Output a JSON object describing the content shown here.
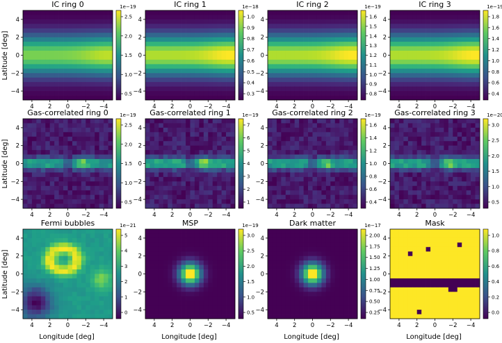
{
  "figure": {
    "xlabel": "Longitude [deg]",
    "ylabel": "Latitude [deg]"
  },
  "chart_data": [
    {
      "type": "heatmap",
      "title": "IC ring 0",
      "kind": "ic",
      "peak": 0.9,
      "cb_ticks": [
        "2.5",
        "2.0",
        "1.5",
        "1.0",
        "0.5"
      ],
      "cb_exp": "1e−19",
      "x_ticks": [
        "4",
        "2",
        "0",
        "−2",
        "−4"
      ],
      "y_ticks": [
        "4",
        "2",
        "0",
        "−2",
        "−4"
      ],
      "xlim": [
        5,
        -5
      ],
      "ylim": [
        -5,
        5
      ]
    },
    {
      "type": "heatmap",
      "title": "IC ring 1",
      "kind": "ic",
      "peak": 1.0,
      "cb_ticks": [
        "1.0",
        "0.9",
        "0.8",
        "0.7",
        "0.6",
        "0.5",
        "0.4",
        "0.3"
      ],
      "cb_exp": "1e−18",
      "x_ticks": [
        "4",
        "2",
        "0",
        "−2",
        "−4"
      ],
      "y_ticks": [
        "4",
        "2",
        "0",
        "−2",
        "−4"
      ],
      "xlim": [
        5,
        -5
      ],
      "ylim": [
        -5,
        5
      ]
    },
    {
      "type": "heatmap",
      "title": "IC ring 2",
      "kind": "ic",
      "peak": 1.0,
      "cb_ticks": [
        "1.6",
        "1.5",
        "1.4",
        "1.3",
        "1.2",
        "1.1",
        "1.0",
        "0.9",
        "0.8"
      ],
      "cb_exp": "1e−19",
      "x_ticks": [
        "4",
        "2",
        "0",
        "−2",
        "−4"
      ],
      "y_ticks": [
        "4",
        "2",
        "0",
        "−2",
        "−4"
      ],
      "xlim": [
        5,
        -5
      ],
      "ylim": [
        -5,
        5
      ]
    },
    {
      "type": "heatmap",
      "title": "IC ring 3",
      "kind": "ic",
      "peak": 1.0,
      "cb_ticks": [
        "1.8",
        "1.6",
        "1.4",
        "1.2",
        "1.0",
        "0.8",
        "0.6",
        "0.4"
      ],
      "cb_exp": "1e−19",
      "x_ticks": [
        "4",
        "2",
        "0",
        "−2",
        "−4"
      ],
      "y_ticks": [
        "4",
        "2",
        "0",
        "−2",
        "−4"
      ],
      "xlim": [
        5,
        -5
      ],
      "ylim": [
        -5,
        5
      ]
    },
    {
      "type": "heatmap",
      "title": "Gas-correlated ring 0",
      "kind": "gas",
      "peak": 0.8,
      "cb_ticks": [
        "2.5",
        "2.0",
        "1.5",
        "1.0",
        "0.5"
      ],
      "cb_exp": "1e−19",
      "x_ticks": [
        "4",
        "2",
        "0",
        "−2",
        "−4"
      ],
      "y_ticks": [
        "4",
        "2",
        "0",
        "−2",
        "−4"
      ],
      "xlim": [
        5,
        -5
      ],
      "ylim": [
        -5,
        5
      ]
    },
    {
      "type": "heatmap",
      "title": "Gas-correlated ring 1",
      "kind": "gas",
      "peak": 0.85,
      "cb_ticks": [
        "7",
        "6",
        "5",
        "4",
        "3",
        "2",
        "1"
      ],
      "cb_exp": "1e−19",
      "x_ticks": [
        "4",
        "2",
        "0",
        "−2",
        "−4"
      ],
      "y_ticks": [
        "4",
        "2",
        "0",
        "−2",
        "−4"
      ],
      "xlim": [
        5,
        -5
      ],
      "ylim": [
        -5,
        5
      ]
    },
    {
      "type": "heatmap",
      "title": "Gas-correlated ring 2",
      "kind": "gas",
      "peak": 0.8,
      "cb_ticks": [
        "1.6",
        "1.4",
        "1.2",
        "1.0",
        "0.8",
        "0.6",
        "0.4"
      ],
      "cb_exp": "1e−19",
      "x_ticks": [
        "4",
        "2",
        "0",
        "−2",
        "−4"
      ],
      "y_ticks": [
        "4",
        "2",
        "0",
        "−2",
        "−4"
      ],
      "xlim": [
        5,
        -5
      ],
      "ylim": [
        -5,
        5
      ]
    },
    {
      "type": "heatmap",
      "title": "Gas-correlated ring 3",
      "kind": "gas",
      "peak": 0.8,
      "cb_ticks": [
        "3.0",
        "2.5",
        "2.0",
        "1.5",
        "1.0",
        "0.5"
      ],
      "cb_exp": "1e−20",
      "x_ticks": [
        "4",
        "2",
        "0",
        "−2",
        "−4"
      ],
      "y_ticks": [
        "4",
        "2",
        "0",
        "−2",
        "−4"
      ],
      "xlim": [
        5,
        -5
      ],
      "ylim": [
        -5,
        5
      ]
    },
    {
      "type": "heatmap",
      "title": "Fermi bubbles",
      "kind": "fermi",
      "peak": 1.0,
      "cb_ticks": [
        "5",
        "4",
        "3",
        "2",
        "1",
        "0"
      ],
      "cb_exp": "1e−21",
      "x_ticks": [
        "4",
        "2",
        "0",
        "−2",
        "−4"
      ],
      "y_ticks": [
        "4",
        "2",
        "0",
        "−2",
        "−4"
      ],
      "xlim": [
        5,
        -5
      ],
      "ylim": [
        -5,
        5
      ]
    },
    {
      "type": "heatmap",
      "title": "MSP",
      "kind": "point",
      "peak": 1.0,
      "cb_ticks": [
        "3.0",
        "2.5",
        "2.0",
        "1.5",
        "1.0",
        "0.5"
      ],
      "cb_exp": "1e−19",
      "x_ticks": [
        "4",
        "2",
        "0",
        "−2",
        "−4"
      ],
      "y_ticks": [
        "4",
        "2",
        "0",
        "−2",
        "−4"
      ],
      "xlim": [
        5,
        -5
      ],
      "ylim": [
        -5,
        5
      ]
    },
    {
      "type": "heatmap",
      "title": "Dark matter",
      "kind": "point",
      "peak": 1.0,
      "cb_ticks": [
        "2.00",
        "1.75",
        "1.50",
        "1.25",
        "1.00",
        "0.75",
        "0.50",
        "0.25"
      ],
      "cb_exp": "1e−17",
      "x_ticks": [
        "4",
        "2",
        "0",
        "−2",
        "−4"
      ],
      "y_ticks": [
        "4",
        "2",
        "0",
        "−2",
        "−4"
      ],
      "xlim": [
        5,
        -5
      ],
      "ylim": [
        -5,
        5
      ]
    },
    {
      "type": "heatmap",
      "title": "Mask",
      "kind": "mask",
      "peak": 1.0,
      "cb_ticks": [
        "1.0",
        "0.8",
        "0.6",
        "0.4",
        "0.2",
        "0.0"
      ],
      "cb_exp": "",
      "x_ticks": [
        "4",
        "2",
        "0",
        "−2",
        "−4"
      ],
      "y_ticks": [
        "4",
        "2",
        "0",
        "−2",
        "−4"
      ],
      "xlim": [
        5,
        -5
      ],
      "ylim": [
        -5,
        5
      ]
    }
  ]
}
